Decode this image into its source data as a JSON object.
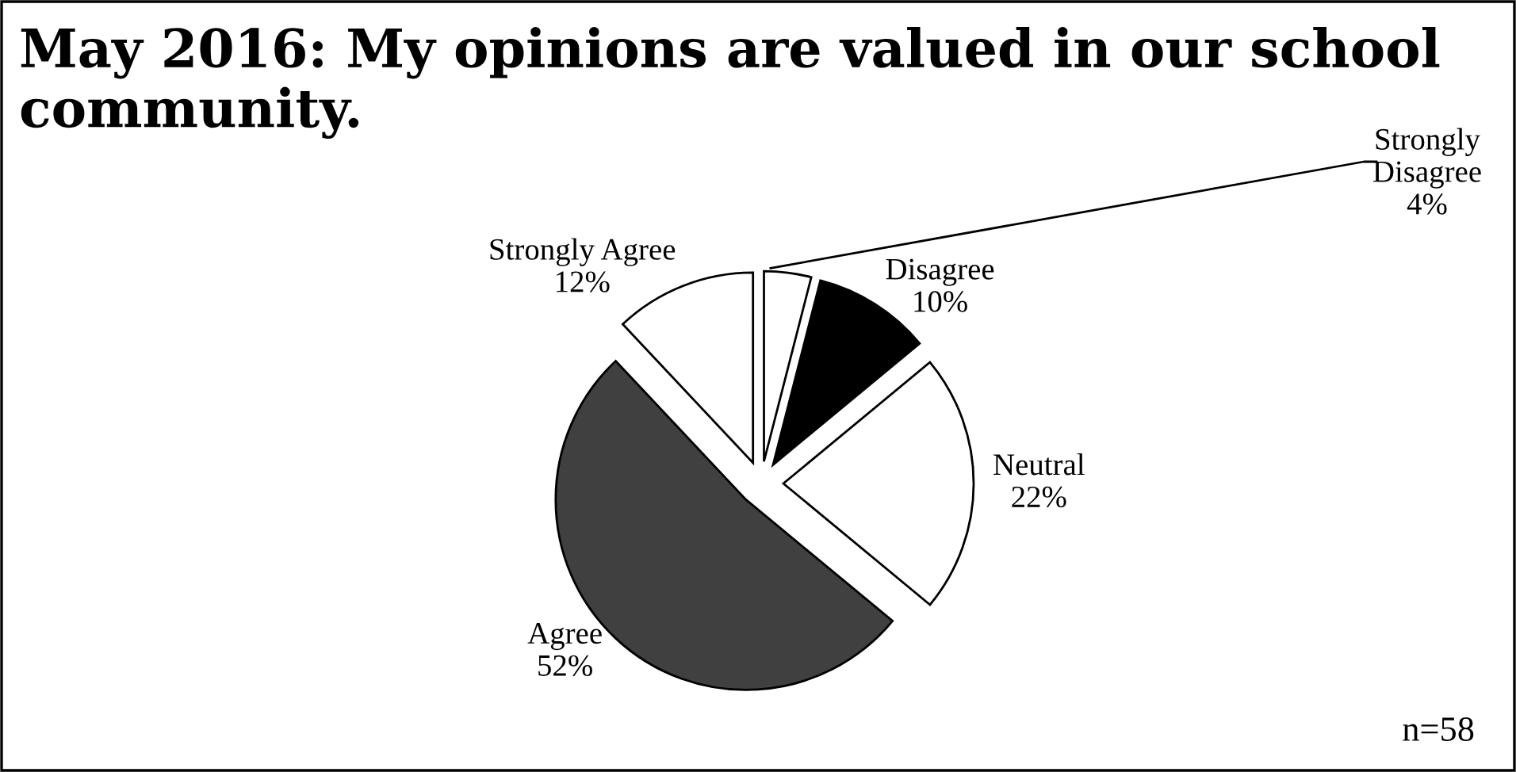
{
  "chart_data": {
    "type": "pie",
    "title": "May 2016: My opinions are valued in our school community.",
    "categories": [
      "Strongly Disagree",
      "Disagree",
      "Neutral",
      "Agree",
      "Strongly Agree"
    ],
    "values": [
      4,
      10,
      22,
      52,
      12
    ],
    "value_labels": [
      "4%",
      "10%",
      "22%",
      "52%",
      "12%"
    ],
    "colors": [
      "#ffffff",
      "#000000",
      "#ffffff",
      "#404040",
      "#ffffff"
    ],
    "annotations": [
      "n=58"
    ],
    "legend": false
  }
}
